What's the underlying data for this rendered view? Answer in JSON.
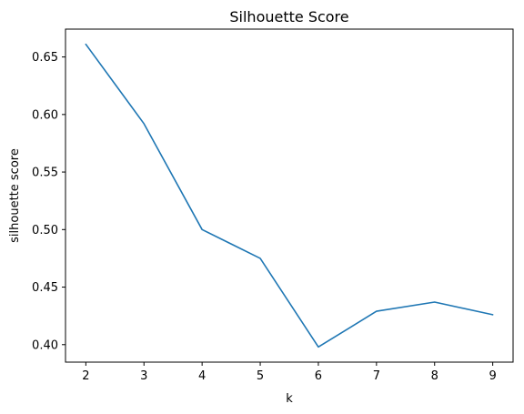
{
  "chart_data": {
    "type": "line",
    "title": "Silhouette Score",
    "xlabel": "k",
    "ylabel": "silhouette score",
    "x": [
      2,
      3,
      4,
      5,
      6,
      7,
      8,
      9
    ],
    "series": [
      {
        "values": [
          0.661,
          0.592,
          0.5,
          0.475,
          0.398,
          0.429,
          0.437,
          0.426
        ],
        "color": "#1f77b4"
      }
    ],
    "xticks": [
      2,
      3,
      4,
      5,
      6,
      7,
      8,
      9
    ],
    "yticks": [
      0.4,
      0.45,
      0.5,
      0.55,
      0.6,
      0.65
    ],
    "ytick_labels": [
      "0.40",
      "0.45",
      "0.50",
      "0.55",
      "0.60",
      "0.65"
    ],
    "xlim": [
      1.65,
      9.35
    ],
    "ylim": [
      0.3848,
      0.6742
    ],
    "grid": false,
    "legend": false
  }
}
